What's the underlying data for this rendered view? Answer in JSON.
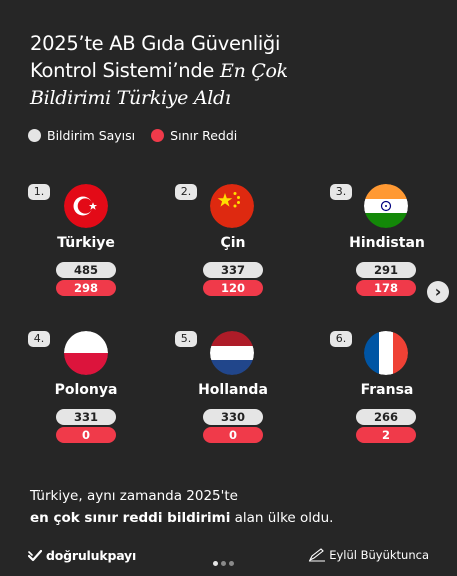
{
  "title": {
    "line1": "2025’te AB Gıda Güvenliği",
    "line2": "Kontrol Sistemi’nde ",
    "line2_em": "En Çok",
    "line3_em": "Bildirimi Türkiye Aldı"
  },
  "legend": {
    "notifications_label": "Bildirim Sayısı",
    "rejections_label": "Sınır Reddi"
  },
  "colors": {
    "background": "#262626",
    "notification_pill": "#e5e5e5",
    "rejection_pill": "#f03a4a"
  },
  "countries": [
    {
      "rank": "1.",
      "name": "Türkiye",
      "notifications": "485",
      "rejections": "298",
      "flag": "turkey-flag-icon"
    },
    {
      "rank": "2.",
      "name": "Çin",
      "notifications": "337",
      "rejections": "120",
      "flag": "china-flag-icon"
    },
    {
      "rank": "3.",
      "name": "Hindistan",
      "notifications": "291",
      "rejections": "178",
      "flag": "india-flag-icon"
    },
    {
      "rank": "4.",
      "name": "Polonya",
      "notifications": "331",
      "rejections": "0",
      "flag": "poland-flag-icon"
    },
    {
      "rank": "5.",
      "name": "Hollanda",
      "notifications": "330",
      "rejections": "0",
      "flag": "netherlands-flag-icon"
    },
    {
      "rank": "6.",
      "name": "Fransa",
      "notifications": "266",
      "rejections": "2",
      "flag": "france-flag-icon"
    }
  ],
  "next_icon": "chevron-right-icon",
  "footer": {
    "line1": "Türkiye, aynı zamanda 2025'te",
    "line2_bold": "en çok sınır reddi bildirimi",
    "line2_rest": " alan ülke oldu."
  },
  "brand": {
    "name": "doğrulukpayı"
  },
  "author": {
    "name": "Eylül Büyüktunca"
  },
  "pagination": {
    "total": 3,
    "active": 1
  }
}
